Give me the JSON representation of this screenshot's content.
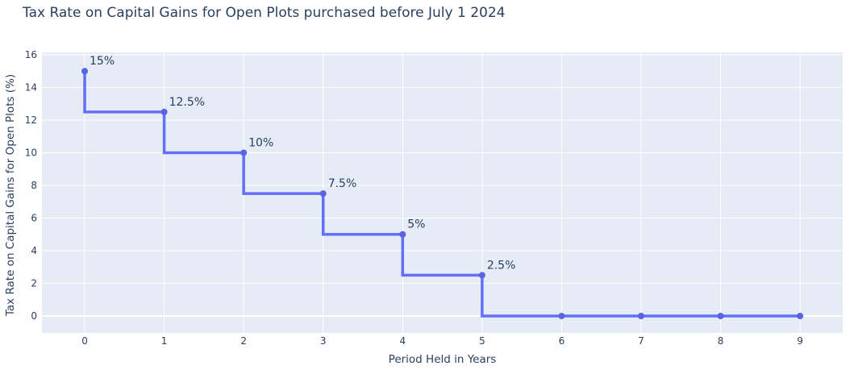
{
  "chart_data": {
    "type": "line",
    "line_shape": "vh",
    "title": "Tax Rate on Capital Gains for Open Plots purchased before July 1 2024",
    "xlabel": "Period Held in Years",
    "ylabel": "Tax Rate on Capital Gains for Open Plots (%)",
    "x": [
      0,
      1,
      2,
      3,
      4,
      5,
      6,
      7,
      8,
      9
    ],
    "y": [
      15,
      12.5,
      10,
      7.5,
      5,
      2.5,
      0,
      0,
      0,
      0
    ],
    "point_labels": [
      "15%",
      "12.5%",
      "10%",
      "7.5%",
      "5%",
      "2.5%",
      "",
      "",
      "",
      ""
    ],
    "xticks": [
      0,
      1,
      2,
      3,
      4,
      5,
      6,
      7,
      8,
      9
    ],
    "yticks": [
      0,
      2,
      4,
      6,
      8,
      10,
      12,
      14,
      16
    ],
    "xlim": [
      -0.538,
      9.537
    ],
    "ylim": [
      -1.037,
      16.148
    ],
    "grid": true,
    "legend": "none",
    "markers": true,
    "colors": {
      "line": "#636efa",
      "marker": "#5b63e0",
      "plot_bg": "#e5ecf6",
      "grid": "#ffffff",
      "text": "#2a3f5f",
      "paper_bg": "#ffffff"
    }
  }
}
